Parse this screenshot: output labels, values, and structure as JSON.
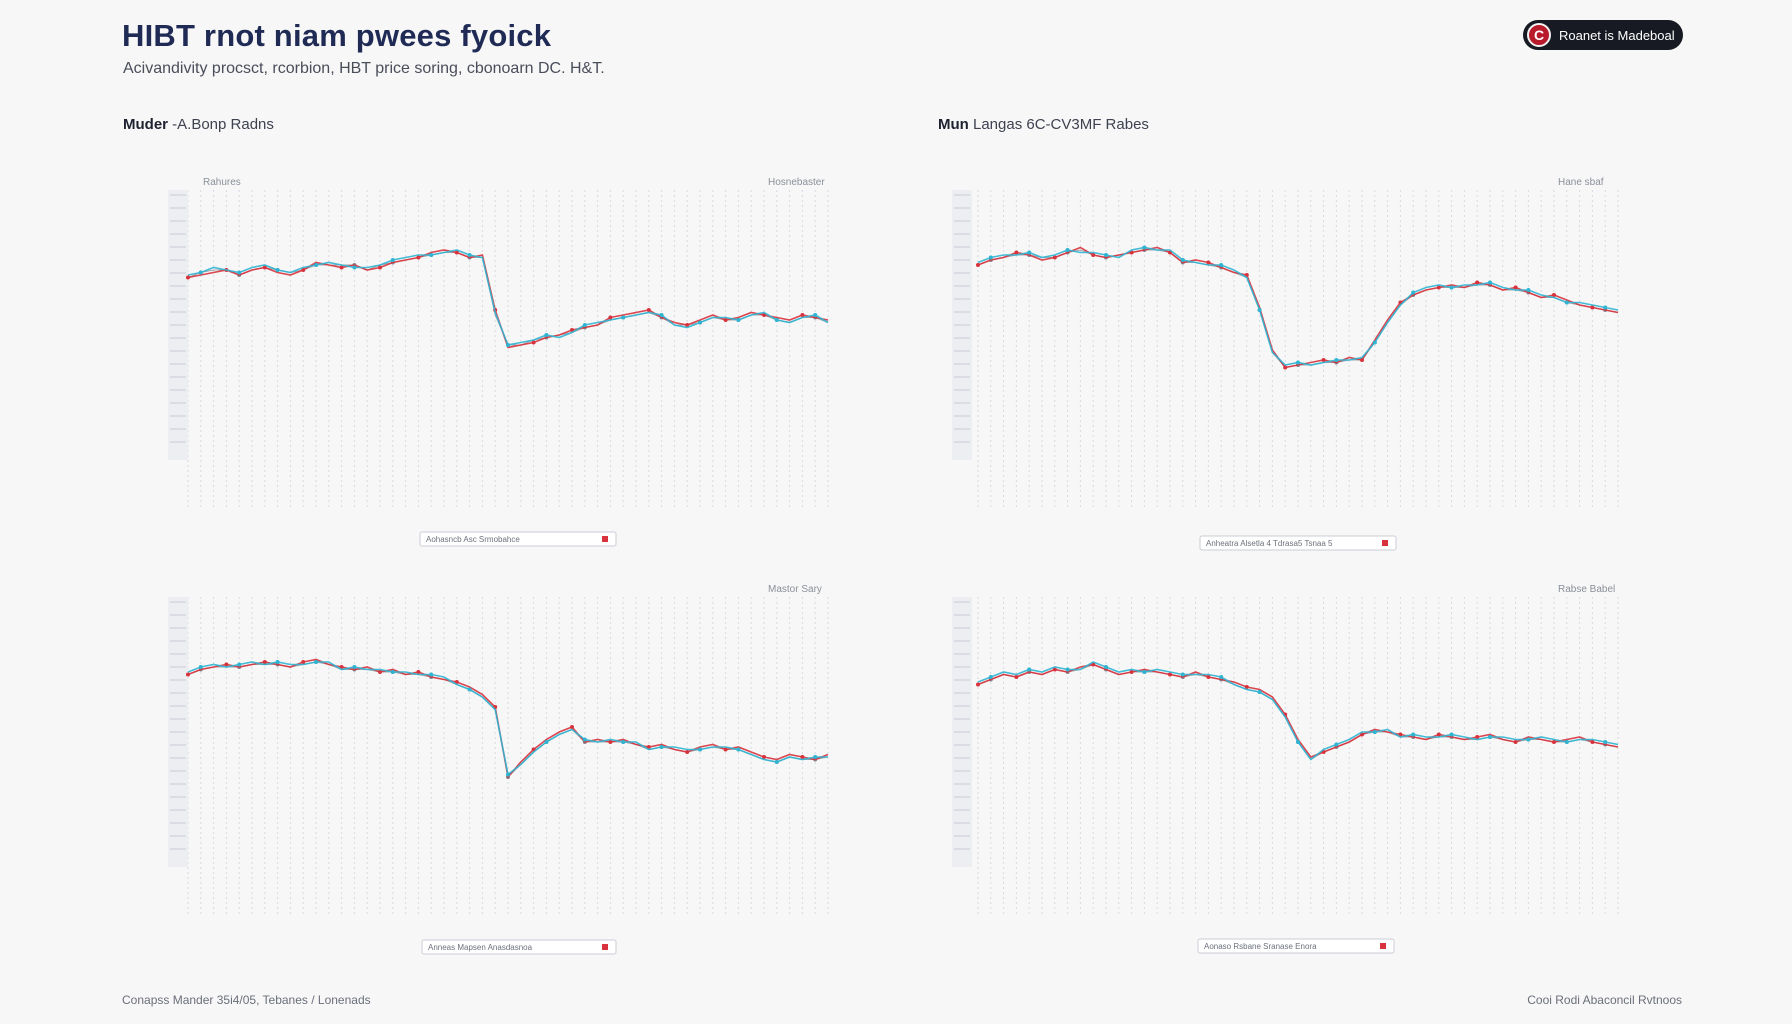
{
  "header": {
    "title": "HIBT rnot niam pwees fyoick",
    "subtitle": "Acivandivity procsct, rcorbion, HBT price soring, cbonoarn DC. H&T.",
    "badge_icon": "c-icon",
    "badge_label": "Roanet is Madeboal",
    "badge_icon_letter": "C"
  },
  "sections": {
    "left": {
      "bold": "Muder",
      "rest": " -A.Bonp Radns"
    },
    "right": {
      "bold": "Mun",
      "rest": " Langas 6C-CV3MF Rabes"
    }
  },
  "colors": {
    "red": "#d8323c",
    "blue": "#2fb4d2",
    "gray": "#7f8590",
    "grid": "#d6dbe2"
  },
  "chart_data": [
    {
      "type": "line",
      "panel": "top-left",
      "corner_label_left": "Rahures",
      "corner_label_right": "Hosnebaster",
      "legend_text": "Aohasncb Asc Srmobahce",
      "x": [
        0,
        1,
        2,
        3,
        4,
        5,
        6,
        7,
        8,
        9,
        10,
        11,
        12,
        13,
        14,
        15,
        16,
        17,
        18,
        19,
        20,
        21,
        22,
        23,
        24,
        25,
        26,
        27,
        28,
        29,
        30,
        31,
        32,
        33,
        34,
        35,
        36,
        37,
        38,
        39,
        40,
        41,
        42,
        43,
        44,
        45,
        46,
        47,
        48,
        49,
        50
      ],
      "series": [
        {
          "name": "red",
          "values": [
            0.67,
            0.68,
            0.69,
            0.7,
            0.68,
            0.7,
            0.71,
            0.69,
            0.68,
            0.7,
            0.73,
            0.72,
            0.71,
            0.72,
            0.7,
            0.71,
            0.73,
            0.74,
            0.75,
            0.77,
            0.78,
            0.77,
            0.75,
            0.76,
            0.54,
            0.39,
            0.4,
            0.41,
            0.43,
            0.44,
            0.46,
            0.47,
            0.48,
            0.51,
            0.52,
            0.53,
            0.54,
            0.51,
            0.49,
            0.48,
            0.5,
            0.52,
            0.5,
            0.51,
            0.53,
            0.52,
            0.51,
            0.5,
            0.52,
            0.51,
            0.5
          ]
        },
        {
          "name": "blue",
          "values": [
            0.68,
            0.69,
            0.71,
            0.7,
            0.69,
            0.71,
            0.72,
            0.7,
            0.69,
            0.71,
            0.72,
            0.73,
            0.72,
            0.71,
            0.71,
            0.72,
            0.74,
            0.75,
            0.76,
            0.76,
            0.77,
            0.78,
            0.76,
            0.75,
            0.53,
            0.4,
            0.41,
            0.42,
            0.44,
            0.43,
            0.45,
            0.48,
            0.49,
            0.5,
            0.51,
            0.52,
            0.53,
            0.52,
            0.48,
            0.47,
            0.49,
            0.51,
            0.51,
            0.5,
            0.52,
            0.53,
            0.5,
            0.49,
            0.51,
            0.52,
            0.49
          ]
        },
        {
          "name": "gray",
          "values": [
            0.67,
            0.69,
            0.7,
            0.7,
            0.68,
            0.7,
            0.71,
            0.7,
            0.69,
            0.7,
            0.72,
            0.72,
            0.72,
            0.72,
            0.7,
            0.72,
            0.73,
            0.74,
            0.75,
            0.76,
            0.77,
            0.77,
            0.75,
            0.75,
            0.52,
            0.4,
            0.4,
            0.42,
            0.43,
            0.44,
            0.45,
            0.47,
            0.48,
            0.5,
            0.51,
            0.52,
            0.53,
            0.51,
            0.48,
            0.48,
            0.49,
            0.51,
            0.5,
            0.5,
            0.52,
            0.52,
            0.5,
            0.49,
            0.51,
            0.51,
            0.49
          ]
        }
      ],
      "ylim": [
        0,
        1
      ]
    },
    {
      "type": "line",
      "panel": "top-right",
      "corner_label_left": "",
      "corner_label_right": "Hane sbaf",
      "legend_text": "Anheatra Alsetla  4  Tdrasa5 Tsnaa  5",
      "x": [
        0,
        1,
        2,
        3,
        4,
        5,
        6,
        7,
        8,
        9,
        10,
        11,
        12,
        13,
        14,
        15,
        16,
        17,
        18,
        19,
        20,
        21,
        22,
        23,
        24,
        25,
        26,
        27,
        28,
        29,
        30,
        31,
        32,
        33,
        34,
        35,
        36,
        37,
        38,
        39,
        40,
        41,
        42,
        43,
        44,
        45,
        46,
        47,
        48,
        49,
        50
      ],
      "series": [
        {
          "name": "red",
          "values": [
            0.72,
            0.74,
            0.75,
            0.77,
            0.76,
            0.74,
            0.75,
            0.77,
            0.79,
            0.76,
            0.75,
            0.76,
            0.77,
            0.78,
            0.79,
            0.77,
            0.73,
            0.74,
            0.73,
            0.71,
            0.69,
            0.68,
            0.55,
            0.38,
            0.31,
            0.32,
            0.33,
            0.34,
            0.33,
            0.35,
            0.34,
            0.42,
            0.5,
            0.57,
            0.6,
            0.62,
            0.63,
            0.64,
            0.63,
            0.65,
            0.64,
            0.62,
            0.63,
            0.61,
            0.59,
            0.6,
            0.58,
            0.56,
            0.55,
            0.54,
            0.53
          ]
        },
        {
          "name": "blue",
          "values": [
            0.73,
            0.75,
            0.76,
            0.76,
            0.77,
            0.75,
            0.76,
            0.78,
            0.77,
            0.77,
            0.76,
            0.75,
            0.78,
            0.79,
            0.78,
            0.78,
            0.74,
            0.73,
            0.72,
            0.72,
            0.7,
            0.67,
            0.54,
            0.37,
            0.32,
            0.33,
            0.32,
            0.33,
            0.34,
            0.34,
            0.35,
            0.41,
            0.49,
            0.56,
            0.61,
            0.63,
            0.64,
            0.63,
            0.64,
            0.64,
            0.65,
            0.63,
            0.62,
            0.62,
            0.6,
            0.59,
            0.57,
            0.57,
            0.56,
            0.55,
            0.54
          ]
        },
        {
          "name": "gray",
          "values": [
            0.72,
            0.74,
            0.75,
            0.76,
            0.76,
            0.75,
            0.75,
            0.77,
            0.78,
            0.76,
            0.75,
            0.76,
            0.77,
            0.78,
            0.78,
            0.77,
            0.73,
            0.73,
            0.72,
            0.71,
            0.69,
            0.67,
            0.54,
            0.37,
            0.31,
            0.32,
            0.32,
            0.33,
            0.33,
            0.34,
            0.34,
            0.41,
            0.49,
            0.56,
            0.6,
            0.62,
            0.63,
            0.63,
            0.63,
            0.64,
            0.64,
            0.62,
            0.62,
            0.61,
            0.59,
            0.59,
            0.57,
            0.56,
            0.55,
            0.54,
            0.53
          ]
        }
      ],
      "ylim": [
        0,
        1
      ]
    },
    {
      "type": "line",
      "panel": "bottom-left",
      "corner_label_left": "",
      "corner_label_right": "Mastor Sary",
      "legend_text": "Anneas Mapsen  Anasdasnoa",
      "x": [
        0,
        1,
        2,
        3,
        4,
        5,
        6,
        7,
        8,
        9,
        10,
        11,
        12,
        13,
        14,
        15,
        16,
        17,
        18,
        19,
        20,
        21,
        22,
        23,
        24,
        25,
        26,
        27,
        28,
        29,
        30,
        31,
        32,
        33,
        34,
        35,
        36,
        37,
        38,
        39,
        40,
        41,
        42,
        43,
        44,
        45,
        46,
        47,
        48,
        49,
        50
      ],
      "series": [
        {
          "name": "red",
          "values": [
            0.71,
            0.73,
            0.74,
            0.75,
            0.74,
            0.75,
            0.76,
            0.75,
            0.74,
            0.76,
            0.77,
            0.75,
            0.74,
            0.73,
            0.74,
            0.72,
            0.73,
            0.71,
            0.72,
            0.7,
            0.69,
            0.68,
            0.66,
            0.63,
            0.58,
            0.3,
            0.36,
            0.41,
            0.45,
            0.48,
            0.5,
            0.44,
            0.45,
            0.44,
            0.45,
            0.43,
            0.42,
            0.43,
            0.41,
            0.4,
            0.42,
            0.43,
            0.41,
            0.42,
            0.4,
            0.38,
            0.37,
            0.39,
            0.38,
            0.37,
            0.39
          ]
        },
        {
          "name": "blue",
          "values": [
            0.72,
            0.74,
            0.75,
            0.74,
            0.75,
            0.76,
            0.75,
            0.76,
            0.75,
            0.75,
            0.76,
            0.76,
            0.73,
            0.74,
            0.73,
            0.73,
            0.72,
            0.72,
            0.71,
            0.71,
            0.7,
            0.67,
            0.65,
            0.62,
            0.57,
            0.31,
            0.35,
            0.4,
            0.44,
            0.47,
            0.49,
            0.45,
            0.44,
            0.45,
            0.44,
            0.44,
            0.41,
            0.42,
            0.42,
            0.41,
            0.41,
            0.42,
            0.42,
            0.41,
            0.39,
            0.37,
            0.36,
            0.38,
            0.37,
            0.38,
            0.38
          ]
        },
        {
          "name": "gray",
          "values": [
            0.71,
            0.73,
            0.74,
            0.74,
            0.74,
            0.75,
            0.75,
            0.75,
            0.74,
            0.75,
            0.76,
            0.75,
            0.73,
            0.73,
            0.73,
            0.72,
            0.72,
            0.71,
            0.71,
            0.7,
            0.69,
            0.67,
            0.65,
            0.62,
            0.57,
            0.3,
            0.35,
            0.4,
            0.44,
            0.47,
            0.49,
            0.44,
            0.44,
            0.44,
            0.44,
            0.43,
            0.41,
            0.42,
            0.41,
            0.4,
            0.41,
            0.42,
            0.41,
            0.41,
            0.39,
            0.37,
            0.36,
            0.38,
            0.37,
            0.37,
            0.38
          ]
        }
      ],
      "ylim": [
        0,
        1
      ]
    },
    {
      "type": "line",
      "panel": "bottom-right",
      "corner_label_left": "",
      "corner_label_right": "Rabse Babel",
      "legend_text": "Aonaso Rsbane  Sranase Enora",
      "x": [
        0,
        1,
        2,
        3,
        4,
        5,
        6,
        7,
        8,
        9,
        10,
        11,
        12,
        13,
        14,
        15,
        16,
        17,
        18,
        19,
        20,
        21,
        22,
        23,
        24,
        25,
        26,
        27,
        28,
        29,
        30,
        31,
        32,
        33,
        34,
        35,
        36,
        37,
        38,
        39,
        40,
        41,
        42,
        43,
        44,
        45,
        46,
        47,
        48,
        49,
        50
      ],
      "series": [
        {
          "name": "red",
          "values": [
            0.67,
            0.69,
            0.71,
            0.7,
            0.72,
            0.71,
            0.73,
            0.72,
            0.74,
            0.75,
            0.73,
            0.71,
            0.72,
            0.73,
            0.72,
            0.71,
            0.7,
            0.72,
            0.7,
            0.69,
            0.68,
            0.66,
            0.65,
            0.62,
            0.55,
            0.45,
            0.38,
            0.4,
            0.42,
            0.44,
            0.47,
            0.49,
            0.48,
            0.47,
            0.46,
            0.45,
            0.47,
            0.46,
            0.45,
            0.46,
            0.47,
            0.45,
            0.44,
            0.46,
            0.45,
            0.44,
            0.45,
            0.46,
            0.44,
            0.43,
            0.42
          ]
        },
        {
          "name": "blue",
          "values": [
            0.68,
            0.7,
            0.72,
            0.71,
            0.73,
            0.72,
            0.74,
            0.73,
            0.73,
            0.76,
            0.74,
            0.72,
            0.73,
            0.72,
            0.73,
            0.72,
            0.71,
            0.71,
            0.71,
            0.7,
            0.67,
            0.65,
            0.64,
            0.61,
            0.54,
            0.44,
            0.37,
            0.41,
            0.43,
            0.45,
            0.48,
            0.48,
            0.49,
            0.46,
            0.47,
            0.46,
            0.46,
            0.47,
            0.46,
            0.45,
            0.46,
            0.46,
            0.45,
            0.45,
            0.46,
            0.45,
            0.44,
            0.45,
            0.45,
            0.44,
            0.43
          ]
        },
        {
          "name": "gray",
          "values": [
            0.67,
            0.69,
            0.71,
            0.7,
            0.72,
            0.71,
            0.73,
            0.72,
            0.73,
            0.75,
            0.73,
            0.71,
            0.72,
            0.72,
            0.72,
            0.71,
            0.7,
            0.71,
            0.7,
            0.69,
            0.67,
            0.65,
            0.64,
            0.61,
            0.54,
            0.44,
            0.37,
            0.4,
            0.42,
            0.44,
            0.47,
            0.48,
            0.48,
            0.46,
            0.46,
            0.45,
            0.46,
            0.46,
            0.45,
            0.45,
            0.46,
            0.45,
            0.44,
            0.45,
            0.45,
            0.44,
            0.44,
            0.45,
            0.44,
            0.43,
            0.42
          ]
        }
      ],
      "ylim": [
        0,
        1
      ]
    }
  ],
  "footer": {
    "left": "Conapss Mander 35i4/05, Tebanes / Lonenads",
    "right": "Cooi Rodi Abaconcil Rvtnoos"
  }
}
